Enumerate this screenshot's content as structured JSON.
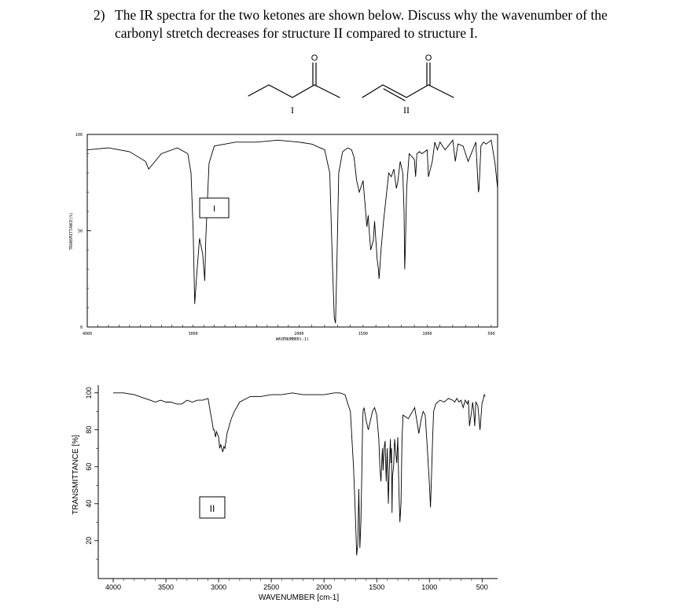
{
  "question": {
    "number": "2)",
    "text": "The IR spectra for the two ketones are shown below. Discuss why the wavenumber of the carbonyl stretch decreases for structure II compared to structure I."
  },
  "structures": [
    {
      "label": "I",
      "atom": "O"
    },
    {
      "label": "II",
      "atom": "O"
    }
  ],
  "spectrum_I": {
    "box_label": "I",
    "ylabel": "TRANSMITTANCE(%)",
    "xlabel": "WAVENUMBER(-1)",
    "y_ticks": [
      "100",
      "50",
      "0"
    ],
    "x_ticks": [
      "4000",
      "3000",
      "2000",
      "1500",
      "1000",
      "500"
    ]
  },
  "spectrum_II": {
    "box_label": "II",
    "ylabel": "TRANSMITTANCE [%]",
    "xlabel": "WAVENUMBER [cm-1]",
    "y_ticks": [
      "100",
      "80",
      "60",
      "40",
      "20"
    ],
    "x_ticks": [
      "4000",
      "3500",
      "3000",
      "2500",
      "2000",
      "1500",
      "1000",
      "500"
    ]
  },
  "chart_data": [
    {
      "type": "line",
      "title": "",
      "xlabel": "WAVENUMBER(-1)",
      "ylabel": "TRANSMITTANCE(%)",
      "xlim": [
        4000,
        450
      ],
      "ylim": [
        0,
        100
      ],
      "grid": false,
      "series": [
        {
          "x": [
            4000,
            3800,
            3600,
            3450,
            3420,
            3300,
            3150,
            3050,
            3020,
            3000,
            2985,
            2975,
            2965,
            2940,
            2925,
            2910,
            2890,
            2880,
            2850,
            2800,
            2700,
            2600,
            2400,
            2200,
            2000,
            1900,
            1800,
            1760,
            1740,
            1725,
            1715,
            1705,
            1690,
            1660,
            1620,
            1590,
            1570,
            1550,
            1530,
            1500,
            1470,
            1460,
            1450,
            1440,
            1420,
            1410,
            1390,
            1380,
            1375,
            1360,
            1340,
            1300,
            1280,
            1260,
            1240,
            1230,
            1210,
            1190,
            1180,
            1175,
            1170,
            1160,
            1140,
            1100,
            1090,
            1080,
            1060,
            1040,
            1000,
            990,
            960,
            940,
            920,
            900,
            860,
            800,
            780,
            760,
            720,
            680,
            620,
            600,
            595,
            580,
            560,
            540,
            500,
            470,
            450
          ],
          "y": [
            92,
            93,
            91,
            86,
            82,
            90,
            93,
            90,
            80,
            50,
            12,
            20,
            28,
            46,
            42,
            38,
            24,
            46,
            85,
            94,
            95,
            96,
            96,
            97,
            96,
            95,
            92,
            80,
            35,
            5,
            2,
            30,
            80,
            91,
            93,
            92,
            88,
            76,
            70,
            76,
            52,
            58,
            48,
            40,
            45,
            55,
            35,
            30,
            25,
            40,
            55,
            80,
            78,
            82,
            72,
            75,
            86,
            80,
            60,
            30,
            40,
            72,
            90,
            87,
            78,
            90,
            91,
            90,
            92,
            78,
            86,
            96,
            92,
            96,
            92,
            97,
            86,
            95,
            94,
            86,
            96,
            70,
            72,
            94,
            96,
            95,
            97,
            85,
            72
          ]
        }
      ]
    },
    {
      "type": "line",
      "title": "",
      "xlabel": "WAVENUMBER [cm-1]",
      "ylabel": "TRANSMITTANCE [%]",
      "xlim": [
        4000,
        450
      ],
      "ylim": [
        5,
        105
      ],
      "grid": false,
      "series": [
        {
          "x": [
            4000,
            3900,
            3800,
            3700,
            3650,
            3600,
            3550,
            3500,
            3450,
            3400,
            3350,
            3300,
            3250,
            3200,
            3150,
            3100,
            3080,
            3060,
            3050,
            3040,
            3030,
            3020,
            3000,
            2990,
            2980,
            2960,
            2950,
            2940,
            2930,
            2920,
            2900,
            2880,
            2850,
            2800,
            2700,
            2600,
            2500,
            2400,
            2300,
            2200,
            2100,
            2000,
            1900,
            1850,
            1800,
            1780,
            1750,
            1720,
            1700,
            1690,
            1680,
            1675,
            1670,
            1665,
            1660,
            1650,
            1640,
            1635,
            1630,
            1620,
            1600,
            1580,
            1560,
            1540,
            1520,
            1500,
            1480,
            1470,
            1460,
            1450,
            1445,
            1440,
            1430,
            1420,
            1410,
            1400,
            1390,
            1380,
            1370,
            1365,
            1360,
            1355,
            1350,
            1340,
            1330,
            1320,
            1310,
            1300,
            1290,
            1280,
            1270,
            1260,
            1250,
            1200,
            1180,
            1160,
            1140,
            1120,
            1100,
            1080,
            1060,
            1040,
            1020,
            1000,
            990,
            980,
            970,
            960,
            940,
            900,
            860,
            820,
            780,
            760,
            740,
            720,
            700,
            680,
            660,
            640,
            630,
            620,
            600,
            590,
            580,
            570,
            560,
            540,
            520,
            500,
            490,
            480,
            470
          ],
          "y": [
            100,
            100,
            99,
            97,
            96,
            95,
            96,
            95,
            95,
            94,
            94,
            96,
            95,
            96,
            96,
            97,
            90,
            84,
            80,
            80,
            76,
            79,
            76,
            70,
            72,
            68,
            71,
            70,
            74,
            78,
            82,
            86,
            90,
            95,
            98,
            98,
            99,
            99,
            100,
            99,
            99,
            99,
            100,
            100,
            99,
            95,
            90,
            60,
            30,
            12,
            18,
            30,
            48,
            32,
            16,
            30,
            60,
            80,
            90,
            92,
            85,
            80,
            85,
            90,
            92,
            88,
            75,
            60,
            52,
            65,
            70,
            58,
            70,
            74,
            52,
            70,
            40,
            60,
            75,
            62,
            70,
            35,
            55,
            60,
            75,
            68,
            62,
            76,
            48,
            30,
            40,
            75,
            88,
            86,
            88,
            90,
            92,
            85,
            78,
            85,
            90,
            88,
            70,
            50,
            38,
            55,
            75,
            90,
            94,
            96,
            95,
            97,
            96,
            95,
            97,
            95,
            96,
            92,
            96,
            94,
            96,
            82,
            90,
            95,
            90,
            82,
            95,
            93,
            80,
            95,
            96,
            99,
            98
          ]
        }
      ]
    }
  ]
}
